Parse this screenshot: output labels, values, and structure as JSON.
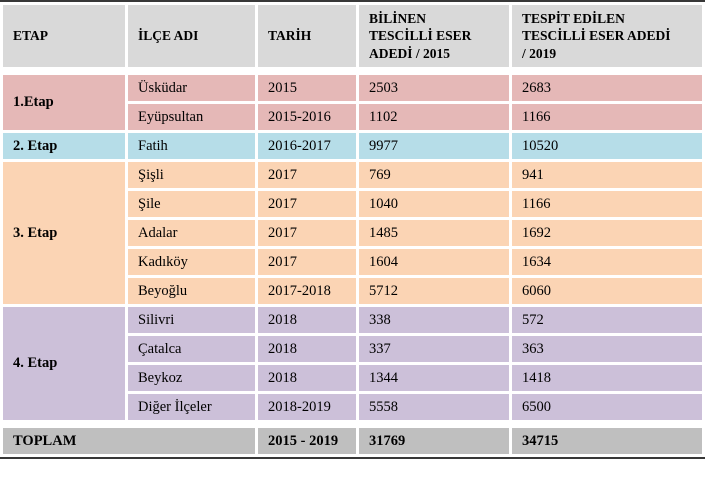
{
  "table": {
    "columns": [
      "ETAP",
      "İLÇE ADI",
      "TARİH",
      "BİLİNEN\nTESCİLLİ ESER\nADEDİ / 2015",
      "TESPİT EDİLEN\nTESCİLLİ ESER ADEDİ\n/ 2019"
    ],
    "groups": [
      {
        "etap": "1.Etap",
        "color": "#E5B8B7",
        "rows": [
          [
            "Üsküdar",
            "2015",
            "2503",
            "2683"
          ],
          [
            "Eyüpsultan",
            "2015-2016",
            "1102",
            "1166"
          ]
        ]
      },
      {
        "etap": "2. Etap",
        "color": "#B6DDE8",
        "rows": [
          [
            "Fatih",
            "2016-2017",
            "9977",
            "10520"
          ]
        ]
      },
      {
        "etap": "3. Etap",
        "color": "#FBD4B4",
        "rows": [
          [
            "Şişli",
            "2017",
            "769",
            "941"
          ],
          [
            "Şile",
            "2017",
            "1040",
            "1166"
          ],
          [
            "Adalar",
            "2017",
            "1485",
            "1692"
          ],
          [
            "Kadıköy",
            "2017",
            "1604",
            "1634"
          ],
          [
            "Beyoğlu",
            "2017-2018",
            "5712",
            "6060"
          ]
        ]
      },
      {
        "etap": "4. Etap",
        "color": "#CCC0D9",
        "rows": [
          [
            "Silivri",
            "2018",
            "338",
            "572"
          ],
          [
            "Çatalca",
            "2018",
            "337",
            "363"
          ],
          [
            "Beykoz",
            "2018",
            "1344",
            "1418"
          ],
          [
            "Diğer İlçeler",
            "2018-2019",
            "5558",
            "6500"
          ]
        ]
      }
    ],
    "total": {
      "label": "TOPLAM",
      "tarih": "2015 - 2019",
      "bilinen_2015": "31769",
      "tespit_2019": "34715"
    },
    "colors": {
      "header_bg": "#D9D9D9",
      "total_bg": "#BFBFBF",
      "stage1_bg": "#E5B8B7",
      "stage2_bg": "#B6DDE8",
      "stage3_bg": "#FBD4B4",
      "stage4_bg": "#CCC0D9",
      "outer_border": "#383838",
      "text": "#000000"
    }
  }
}
